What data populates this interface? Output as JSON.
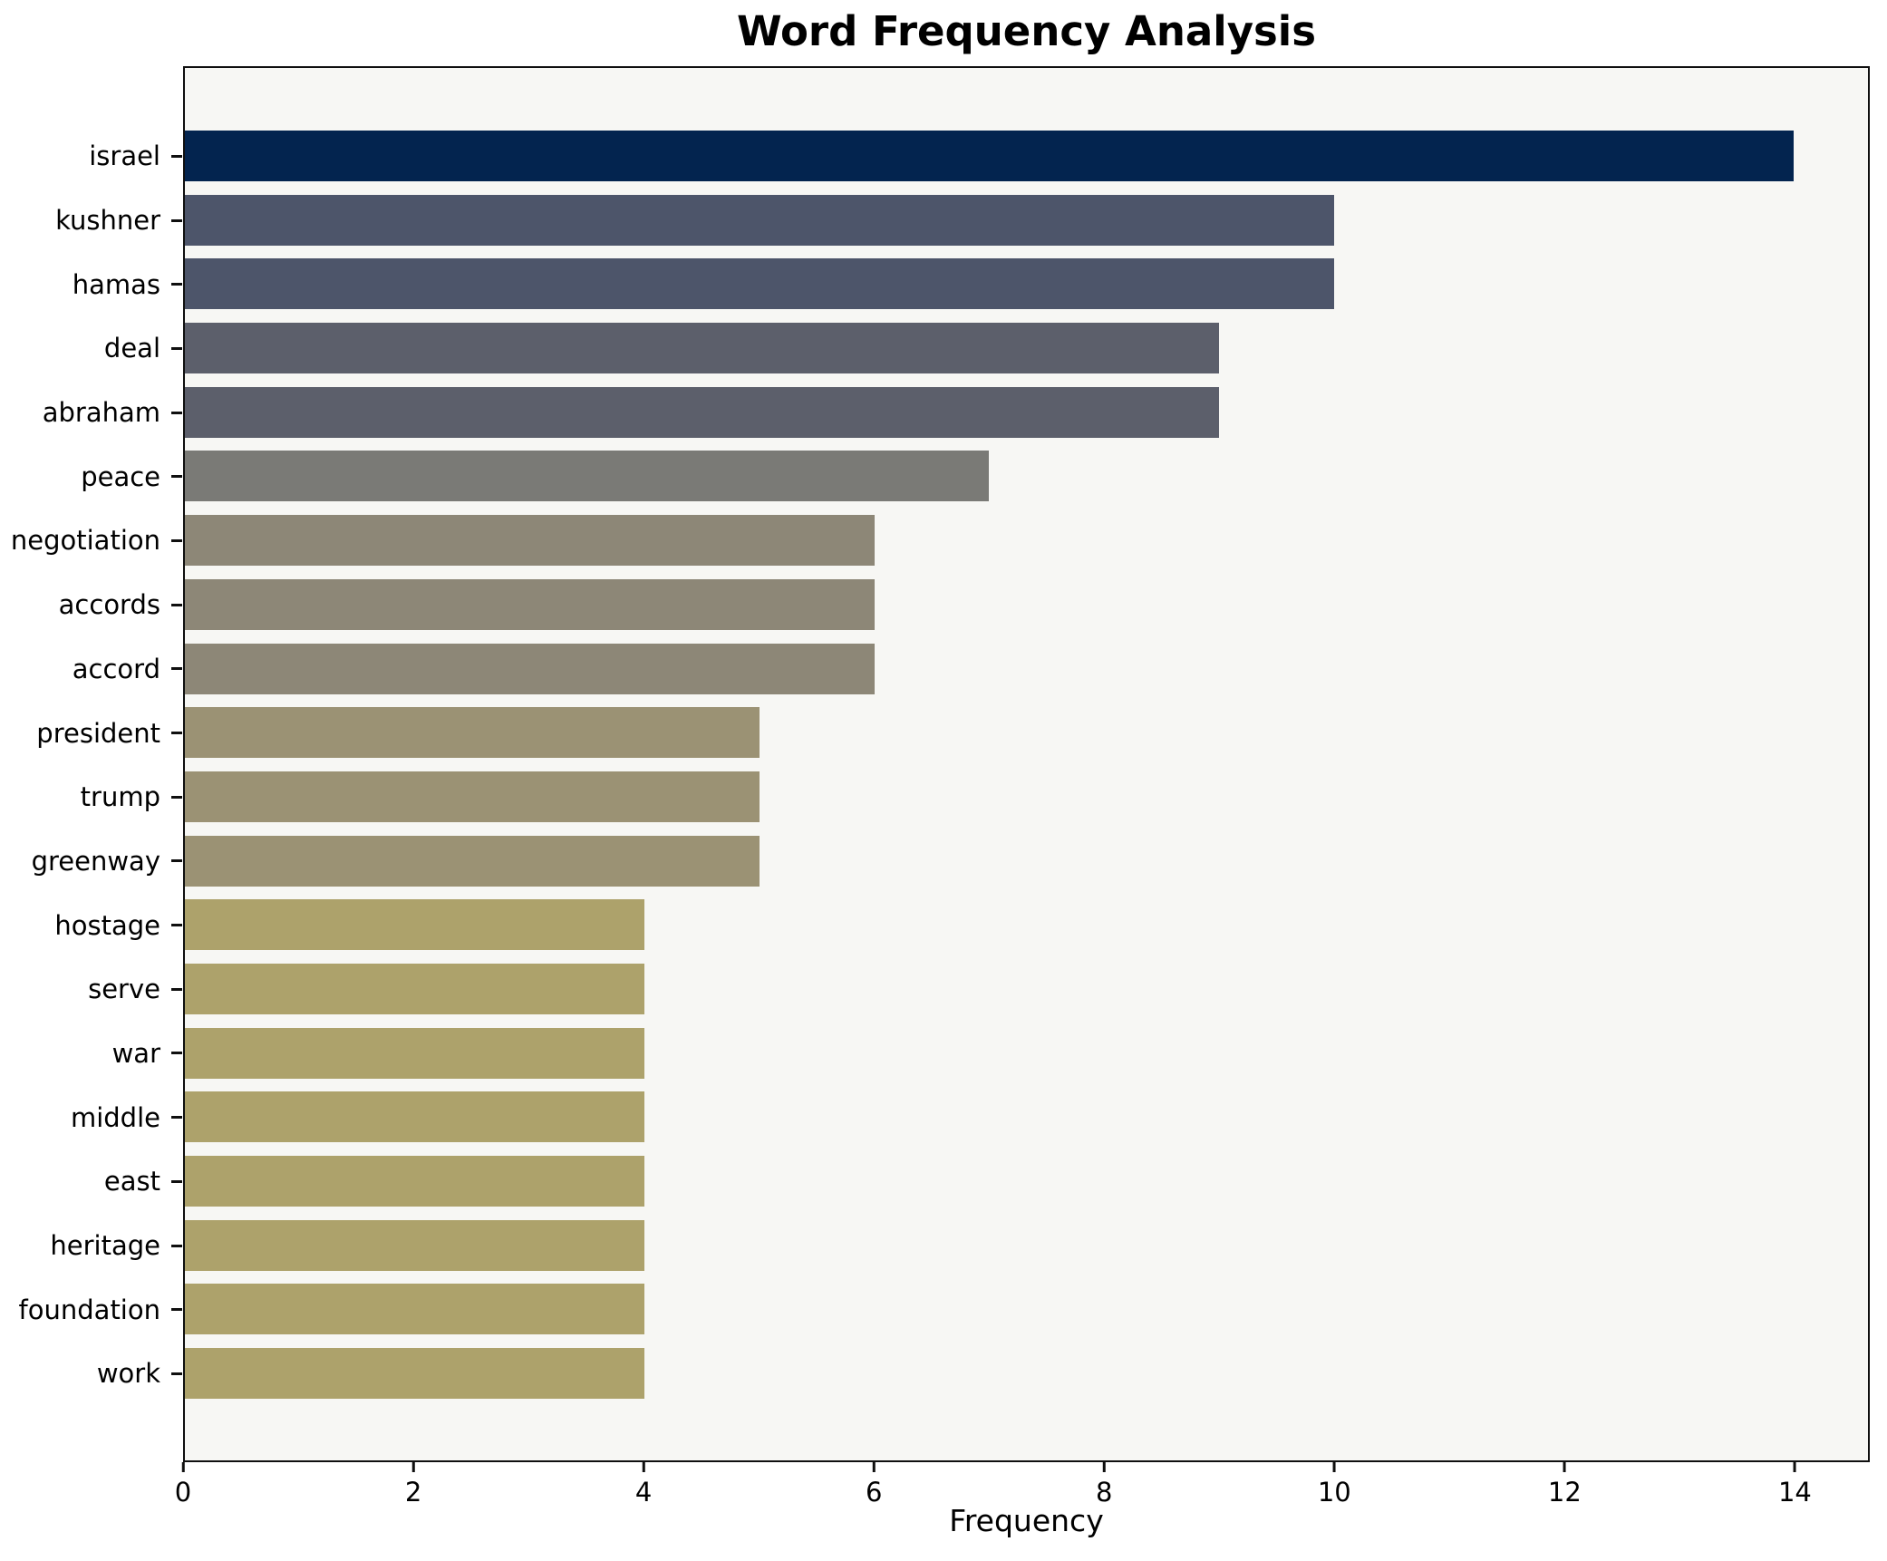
{
  "figure": {
    "background_color": "#ffffff",
    "plot_background_color": "#f7f7f4",
    "spine_color": "#0f0f0f"
  },
  "chart_data": {
    "type": "bar",
    "orientation": "horizontal",
    "title": "Word Frequency Analysis",
    "xlabel": "Frequency",
    "ylabel": "",
    "grid": false,
    "legend": null,
    "xlim": [
      0,
      14.65
    ],
    "xticks": [
      0,
      2,
      4,
      6,
      8,
      10,
      12,
      14
    ],
    "categories": [
      "israel",
      "kushner",
      "hamas",
      "deal",
      "abraham",
      "peace",
      "negotiation",
      "accords",
      "accord",
      "president",
      "trump",
      "greenway",
      "hostage",
      "serve",
      "war",
      "middle",
      "east",
      "heritage",
      "foundation",
      "work"
    ],
    "values": [
      14,
      10,
      10,
      9,
      9,
      7,
      6,
      6,
      6,
      5,
      5,
      5,
      4,
      4,
      4,
      4,
      4,
      4,
      4,
      4
    ],
    "bar_colors": [
      "#03244f",
      "#4d556a",
      "#4d556a",
      "#5c5f6b",
      "#5c5f6b",
      "#7a7a76",
      "#8d8777",
      "#8d8777",
      "#8d8777",
      "#9b9274",
      "#9b9274",
      "#9b9274",
      "#ada26b",
      "#ada26b",
      "#ada26b",
      "#ada26b",
      "#ada26b",
      "#ada26b",
      "#ada26b",
      "#ada26b"
    ]
  }
}
